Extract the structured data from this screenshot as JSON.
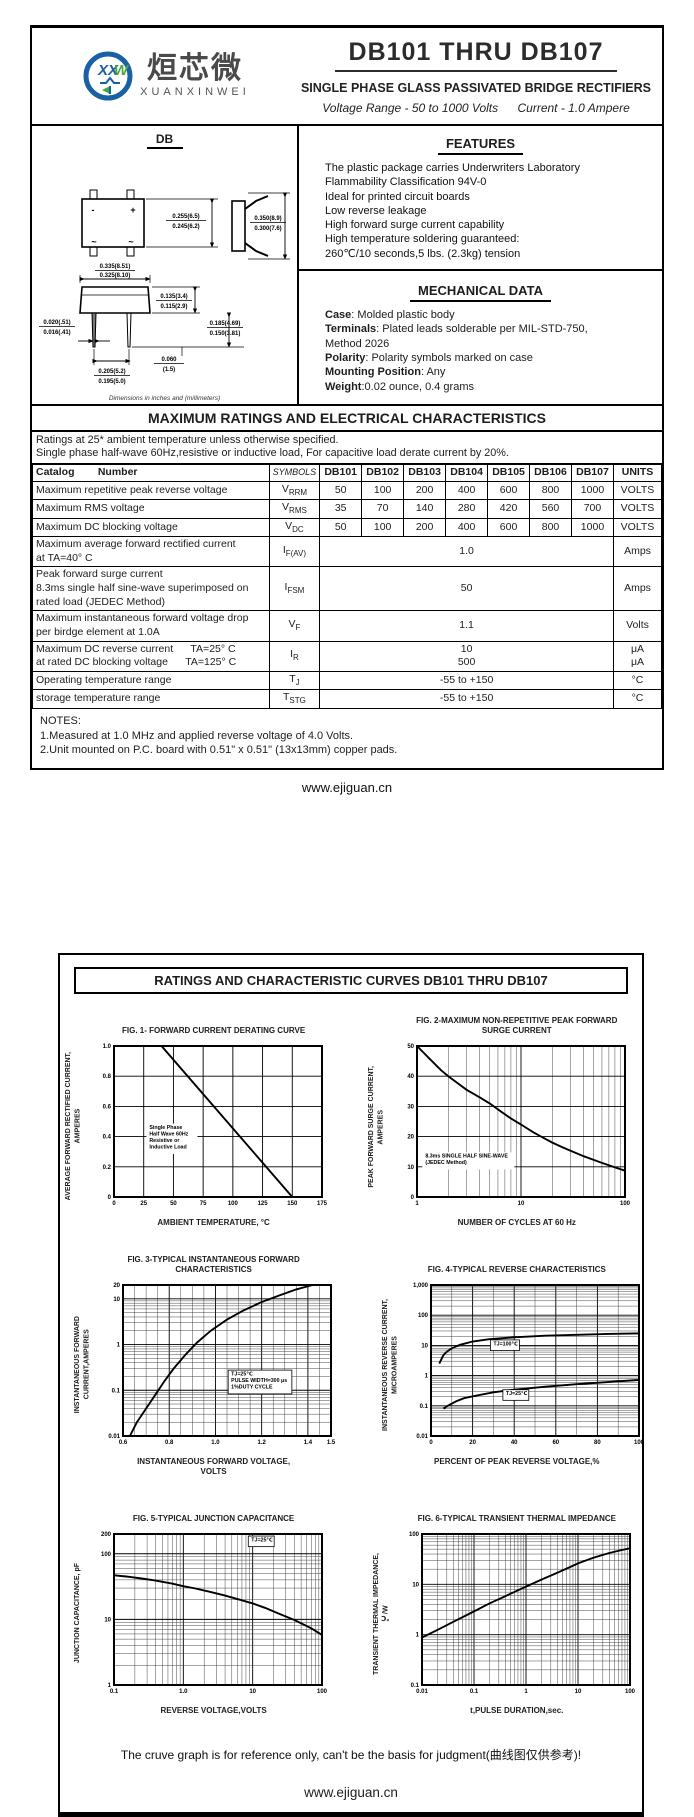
{
  "colors": {
    "logo_blue": "#1960a5",
    "logo_green": "#44a93c",
    "ink": "#222222"
  },
  "page1": {
    "logo": {
      "monogram": "XXW",
      "chinese": "烜芯微",
      "latin": "XUANXINWEI"
    },
    "title": "DB101 THRU DB107",
    "subtitle": "SINGLE PHASE GLASS PASSIVATED BRIDGE RECTIFIERS",
    "voltage_range": "Voltage Range - 50 to 1000 Volts",
    "current": "Current -  1.0 Ampere",
    "package": {
      "name": "DB",
      "marks": [
        "-",
        "+",
        "~",
        "~"
      ],
      "dims": {
        "d1": [
          "0.255(6.5)",
          "0.245(6.2)"
        ],
        "d2": [
          "0.350(8.9)",
          "0.300(7.6)"
        ],
        "d3": [
          "0.335(8.51)",
          "0.325(8.10)"
        ],
        "d4": [
          "0.135(3.4)",
          "0.115(2.9)"
        ],
        "d5": [
          "0.185(4.69)",
          "0.150(3.81)"
        ],
        "d6": [
          "0.020(.51)",
          "0.016(.41)"
        ],
        "d7": [
          "0.205(5.2)",
          "0.195(5.0)"
        ],
        "d8": [
          "0.060",
          "(1.5)"
        ]
      },
      "caption": "Dimensions in inches and (millimeters)"
    },
    "features": {
      "heading": "FEATURES",
      "items": [
        "The plastic package carries Underwriters Laboratory",
        "Flammability Classification 94V-0",
        "Ideal for printed circuit boards",
        "Low reverse leakage",
        "High forward surge current capability",
        "High temperature soldering guaranteed:",
        "260℃/10 seconds,5 lbs. (2.3kg) tension"
      ]
    },
    "mechanical": {
      "heading": "MECHANICAL DATA",
      "items": [
        {
          "label": "Case",
          "text": ": Molded plastic body"
        },
        {
          "label": "Terminals",
          "text": ": Plated leads solderable per MIL-STD-750,"
        },
        {
          "label": "",
          "text": " Method 2026"
        },
        {
          "label": "Polarity",
          "text": ": Polarity symbols marked on case"
        },
        {
          "label": "Mounting Position",
          "text": ": Any"
        },
        {
          "label": "Weight",
          "text": ":0.02 ounce, 0.4 grams"
        }
      ]
    },
    "ratings": {
      "heading": "MAXIMUM RATINGS AND ELECTRICAL CHARACTERISTICS",
      "condition_lines": [
        "Ratings at 25* ambient temperature unless otherwise specified.",
        "Single phase half-wave 60Hz,resistive or inductive load, For capacitive load derate current by 20%."
      ],
      "table": {
        "catalog_header": "Catalog        Number",
        "symbols_header": "SYMBOLS",
        "part_headers": [
          "DB101",
          "DB102",
          "DB103",
          "DB104",
          "DB105",
          "DB106",
          "DB107"
        ],
        "units_header": "UNITS",
        "rows": [
          {
            "label": "Maximum repetitive peak reverse voltage",
            "sym": "V",
            "sub": "RRM",
            "values": [
              "50",
              "100",
              "200",
              "400",
              "600",
              "800",
              "1000"
            ],
            "units": "VOLTS"
          },
          {
            "label": "Maximum RMS voltage",
            "sym": "V",
            "sub": "RMS",
            "values": [
              "35",
              "70",
              "140",
              "280",
              "420",
              "560",
              "700"
            ],
            "units": "VOLTS"
          },
          {
            "label": "Maximum DC blocking voltage",
            "sym": "V",
            "sub": "DC",
            "values": [
              "50",
              "100",
              "200",
              "400",
              "600",
              "800",
              "1000"
            ],
            "units": "VOLTS"
          },
          {
            "label": "Maximum average forward rectified current\nat TA=40° C",
            "sym": "I",
            "sub": "F(AV)",
            "span": "1.0",
            "units": "Amps"
          },
          {
            "label": "Peak forward surge current\n8.3ms single half sine-wave superimposed on\nrated load (JEDEC Method)",
            "sym": "I",
            "sub": "FSM",
            "span": "50",
            "units": "Amps"
          },
          {
            "label": "Maximum instantaneous forward voltage drop\nper birdge element at 1.0A",
            "sym": "V",
            "sub": "F",
            "span": "1.1",
            "units": "Volts"
          },
          {
            "label": "Maximum DC reverse current      TA=25° C\nat rated DC blocking voltage      TA=125° C",
            "sym": "I",
            "sub": "R",
            "span": "10\n500",
            "units": "μA\nμA"
          },
          {
            "label": "Operating temperature range",
            "sym": "T",
            "sub": "J",
            "span": "-55 to +150",
            "units": "°C"
          },
          {
            "label": "storage temperature range",
            "sym": "T",
            "sub": "STG",
            "span": "-55 to +150",
            "units": "°C"
          }
        ]
      },
      "notes": [
        "NOTES:",
        "1.Measured at 1.0 MHz and applied reverse voltage of 4.0 Volts.",
        "2.Unit mounted on P.C. board with 0.51\"  x 0.51\"  (13x13mm) copper pads."
      ]
    },
    "footer": "www.ejiguan.cn"
  },
  "page2": {
    "heading": "RATINGS AND CHARACTERISTIC CURVES DB101 THRU DB107",
    "disclaimer": "The cruve graph is for reference only, can't be the basis for judgment(曲线图仅供参考)!",
    "footer": "www.ejiguan.cn"
  },
  "chart_data": [
    {
      "id": "fig1",
      "type": "line",
      "title": "FIG. 1- FORWARD CURRENT DERATING CURVE",
      "xlabel": "AMBIENT TEMPERATURE, °C",
      "ylabel": "AVERAGE FORWARD RECTIFIED CURRENT,\nAMPERES",
      "x_scale": "linear",
      "y_scale": "linear",
      "xlim": [
        0,
        175
      ],
      "ylim": [
        0,
        1.0
      ],
      "x_ticks": {
        "values": [
          0,
          25,
          50,
          75,
          100,
          125,
          150,
          175
        ],
        "labels": [
          "0",
          "25",
          "50",
          "75",
          "100",
          "125",
          "150",
          "175"
        ]
      },
      "y_ticks": {
        "values": [
          0,
          0.2,
          0.4,
          0.6,
          0.8,
          1.0
        ],
        "labels": [
          "0",
          "0.2",
          "0.4",
          "0.6",
          "0.8",
          "1.0"
        ]
      },
      "series": [
        {
          "name": "derating",
          "points": [
            [
              0,
              1.0
            ],
            [
              40,
              1.0
            ],
            [
              150,
              0
            ]
          ]
        }
      ],
      "annotations": [
        {
          "text": "Single Phase\nHalf Wave 60Hz\nResistive or\nInductive Load",
          "x": 17,
          "y": 55,
          "boxed": false,
          "bg": true
        }
      ]
    },
    {
      "id": "fig2",
      "type": "line",
      "title": "FIG. 2-MAXIMUM NON-REPETITIVE PEAK FORWARD\nSURGE CURRENT",
      "xlabel": "NUMBER OF CYCLES AT 60 Hz",
      "ylabel": "PEAK  FORWARD SURGE CURRENT,\nAMPERES",
      "x_scale": "log",
      "y_scale": "linear",
      "xlim": [
        1,
        100
      ],
      "ylim": [
        0,
        50
      ],
      "x_ticks": {
        "values": [
          1,
          10,
          100
        ],
        "labels": [
          "1",
          "10",
          "100"
        ]
      },
      "y_ticks": {
        "values": [
          0,
          10,
          20,
          30,
          40,
          50
        ],
        "labels": [
          "0",
          "10",
          "20",
          "30",
          "40",
          "50"
        ]
      },
      "series": [
        {
          "name": "surge",
          "points": [
            [
              1,
              50
            ],
            [
              1.3,
              46
            ],
            [
              1.7,
              42
            ],
            [
              2,
              40
            ],
            [
              2.5,
              37.5
            ],
            [
              3,
              35.5
            ],
            [
              4,
              33
            ],
            [
              5,
              31
            ],
            [
              6,
              29
            ],
            [
              8,
              26
            ],
            [
              10,
              24
            ],
            [
              13,
              21.5
            ],
            [
              16,
              19.8
            ],
            [
              20,
              18
            ],
            [
              25,
              16.5
            ],
            [
              30,
              15.3
            ],
            [
              40,
              13.5
            ],
            [
              50,
              12.3
            ],
            [
              60,
              11.3
            ],
            [
              80,
              9.8
            ],
            [
              100,
              8.7
            ]
          ]
        }
      ],
      "annotations": [
        {
          "text": "8.3ms SINGLE HALF SINE-WAVE\n(JEDEC Method)",
          "x": 4,
          "y": 74,
          "boxed": false,
          "bg": true
        }
      ]
    },
    {
      "id": "fig3",
      "type": "line",
      "title": "FIG. 3-TYPICAL INSTANTANEOUS FORWARD\nCHARACTERISTICS",
      "xlabel": "INSTANTANEOUS FORWARD VOLTAGE,\nVOLTS",
      "ylabel": "INSTANTANEOUS FORWARD\nCURRENT,AMPERES",
      "x_scale": "linear",
      "y_scale": "log",
      "xlim": [
        0.6,
        1.5
      ],
      "ylim": [
        0.01,
        20
      ],
      "x_minor": 0.05,
      "x_ticks": {
        "values": [
          0.6,
          0.8,
          1.0,
          1.2,
          1.4,
          1.5
        ],
        "labels": [
          "0.6",
          "0.8",
          "1.0",
          "1.2",
          "1.4",
          "1.5"
        ]
      },
      "y_ticks": {
        "values": [
          0.01,
          0.1,
          1,
          10,
          20
        ],
        "labels": [
          "0.01",
          "0.1",
          "1",
          "10",
          "20"
        ]
      },
      "series": [
        {
          "name": "vf",
          "points": [
            [
              0.63,
              0.01
            ],
            [
              0.66,
              0.02
            ],
            [
              0.7,
              0.04
            ],
            [
              0.74,
              0.08
            ],
            [
              0.78,
              0.16
            ],
            [
              0.82,
              0.3
            ],
            [
              0.87,
              0.6
            ],
            [
              0.92,
              1.1
            ],
            [
              0.98,
              2.0
            ],
            [
              1.05,
              3.5
            ],
            [
              1.12,
              5.5
            ],
            [
              1.2,
              8.5
            ],
            [
              1.28,
              12
            ],
            [
              1.35,
              16
            ],
            [
              1.42,
              20
            ]
          ]
        }
      ],
      "annotations": [
        {
          "text": "TJ=25℃\nPULSE WIDTH=300 μs\n1%DUTY CYCLE",
          "x": 52,
          "y": 60,
          "boxed": true
        }
      ]
    },
    {
      "id": "fig4",
      "type": "line",
      "title": "FIG. 4-TYPICAL REVERSE CHARACTERISTICS",
      "xlabel": "PERCENT OF PEAK REVERSE VOLTAGE,%",
      "ylabel": "INSTANTANEOUS REVERSE CURRENT,\nMICROAMPERES",
      "x_scale": "linear",
      "y_scale": "log",
      "xlim": [
        0,
        100
      ],
      "ylim": [
        0.01,
        1000
      ],
      "x_minor": 10,
      "x_ticks": {
        "values": [
          0,
          20,
          40,
          60,
          80,
          100
        ],
        "labels": [
          "0",
          "20",
          "40",
          "60",
          "80",
          "100"
        ]
      },
      "y_ticks": {
        "values": [
          0.01,
          0.1,
          1,
          10,
          100,
          1000
        ],
        "labels": [
          "0.01",
          "0.1",
          "1",
          "10",
          "100",
          "1,000"
        ]
      },
      "series": [
        {
          "name": "TJ=100℃",
          "points": [
            [
              4,
              2.5
            ],
            [
              6,
              4.8
            ],
            [
              8,
              6.5
            ],
            [
              10,
              8
            ],
            [
              14,
              10.5
            ],
            [
              20,
              13.5
            ],
            [
              28,
              16
            ],
            [
              40,
              18.5
            ],
            [
              55,
              21
            ],
            [
              70,
              22.5
            ],
            [
              85,
              24
            ],
            [
              100,
              25
            ]
          ]
        },
        {
          "name": "TJ=25℃",
          "points": [
            [
              6,
              0.08
            ],
            [
              8,
              0.1
            ],
            [
              12,
              0.14
            ],
            [
              16,
              0.18
            ],
            [
              22,
              0.22
            ],
            [
              30,
              0.28
            ],
            [
              40,
              0.34
            ],
            [
              55,
              0.43
            ],
            [
              70,
              0.52
            ],
            [
              85,
              0.61
            ],
            [
              100,
              0.72
            ]
          ]
        }
      ],
      "annotations": [
        {
          "text": "TJ=100℃",
          "x": 30,
          "y": 40,
          "boxed": true
        },
        {
          "text": "TJ=25℃",
          "x": 36,
          "y": 73,
          "boxed": true
        }
      ]
    },
    {
      "id": "fig5",
      "type": "line",
      "title": "FIG. 5-TYPICAL JUNCTION CAPACITANCE",
      "xlabel": "REVERSE VOLTAGE,VOLTS",
      "ylabel": "JUNCTION CAPACITANCE, pF",
      "x_scale": "log",
      "y_scale": "log",
      "xlim": [
        0.1,
        100
      ],
      "ylim": [
        1,
        200
      ],
      "x_ticks": {
        "values": [
          0.1,
          1,
          10,
          100
        ],
        "labels": [
          "0.1",
          "1.0",
          "10",
          "100"
        ]
      },
      "y_ticks": {
        "values": [
          1,
          10,
          100,
          200
        ],
        "labels": [
          "1",
          "10",
          "100",
          "200"
        ]
      },
      "series": [
        {
          "name": "cj",
          "points": [
            [
              0.1,
              47
            ],
            [
              0.15,
              45
            ],
            [
              0.25,
              42
            ],
            [
              0.4,
              39
            ],
            [
              0.7,
              35
            ],
            [
              1,
              32
            ],
            [
              1.5,
              29.5
            ],
            [
              2.5,
              26
            ],
            [
              4,
              23
            ],
            [
              7,
              19.5
            ],
            [
              10,
              17.5
            ],
            [
              15,
              15
            ],
            [
              25,
              12
            ],
            [
              40,
              9.8
            ],
            [
              70,
              7.3
            ],
            [
              100,
              5.8
            ]
          ]
        }
      ],
      "annotations": [
        {
          "text": "TJ=25℃",
          "x": 66,
          "y": 5,
          "boxed": true
        }
      ]
    },
    {
      "id": "fig6",
      "type": "line",
      "title": "FIG. 6-TYPICAL TRANSIENT THERMAL IMPEDANCE",
      "xlabel": "t,PULSE DURATION,sec.",
      "ylabel": "TRANSIENT THERMAL IMPEDANCE,\n℃/W",
      "x_scale": "log",
      "y_scale": "log",
      "xlim": [
        0.01,
        100
      ],
      "ylim": [
        0.1,
        100
      ],
      "x_ticks": {
        "values": [
          0.01,
          0.1,
          1,
          10,
          100
        ],
        "labels": [
          "0.01",
          "0.1",
          "1",
          "10",
          "100"
        ]
      },
      "y_ticks": {
        "values": [
          0.1,
          1,
          10,
          100
        ],
        "labels": [
          "0.1",
          "1",
          "10",
          "100"
        ]
      },
      "series": [
        {
          "name": "zth",
          "points": [
            [
              0.01,
              0.88
            ],
            [
              0.02,
              1.25
            ],
            [
              0.04,
              1.8
            ],
            [
              0.07,
              2.4
            ],
            [
              0.1,
              2.9
            ],
            [
              0.2,
              4.2
            ],
            [
              0.4,
              5.8
            ],
            [
              0.7,
              7.6
            ],
            [
              1,
              9
            ],
            [
              2,
              12.5
            ],
            [
              4,
              17
            ],
            [
              7,
              22
            ],
            [
              10,
              26
            ],
            [
              20,
              34
            ],
            [
              40,
              42
            ],
            [
              70,
              48
            ],
            [
              100,
              52
            ]
          ]
        }
      ],
      "annotations": []
    }
  ]
}
